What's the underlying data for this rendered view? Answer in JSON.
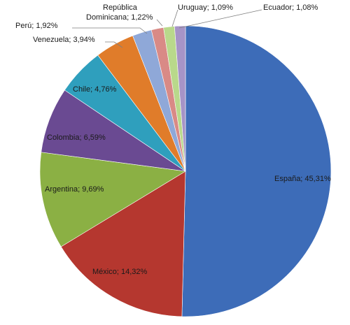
{
  "chart_data": {
    "type": "pie",
    "title": "",
    "start_angle_deg": 0,
    "direction": "clockwise",
    "slices": [
      {
        "label": "España; 45,31%",
        "value": 45.31,
        "color": "#3d6cb8"
      },
      {
        "label": "México; 14,32%",
        "value": 14.32,
        "color": "#b5372f"
      },
      {
        "label": "Argentina; 9,69%",
        "value": 9.69,
        "color": "#8bb044"
      },
      {
        "label": "Colombia; 6,59%",
        "value": 6.59,
        "color": "#6a4a92"
      },
      {
        "label": "Chile; 4,76%",
        "value": 4.76,
        "color": "#2f9fbd"
      },
      {
        "label": "Venezuela; 3,94%",
        "value": 3.94,
        "color": "#e07c2a"
      },
      {
        "label": "Perú; 1,92%",
        "value": 1.92,
        "color": "#8fa8d8"
      },
      {
        "label": "República Dominicana; 1,22%",
        "label_lines": [
          "República",
          "Dominicana; 1,22%"
        ],
        "value": 1.22,
        "color": "#d98a86"
      },
      {
        "label": "Uruguay; 1,09%",
        "value": 1.09,
        "color": "#b9d98b"
      },
      {
        "label": "Ecuador; 1,08%",
        "value": 1.08,
        "color": "#a694c7"
      }
    ]
  }
}
